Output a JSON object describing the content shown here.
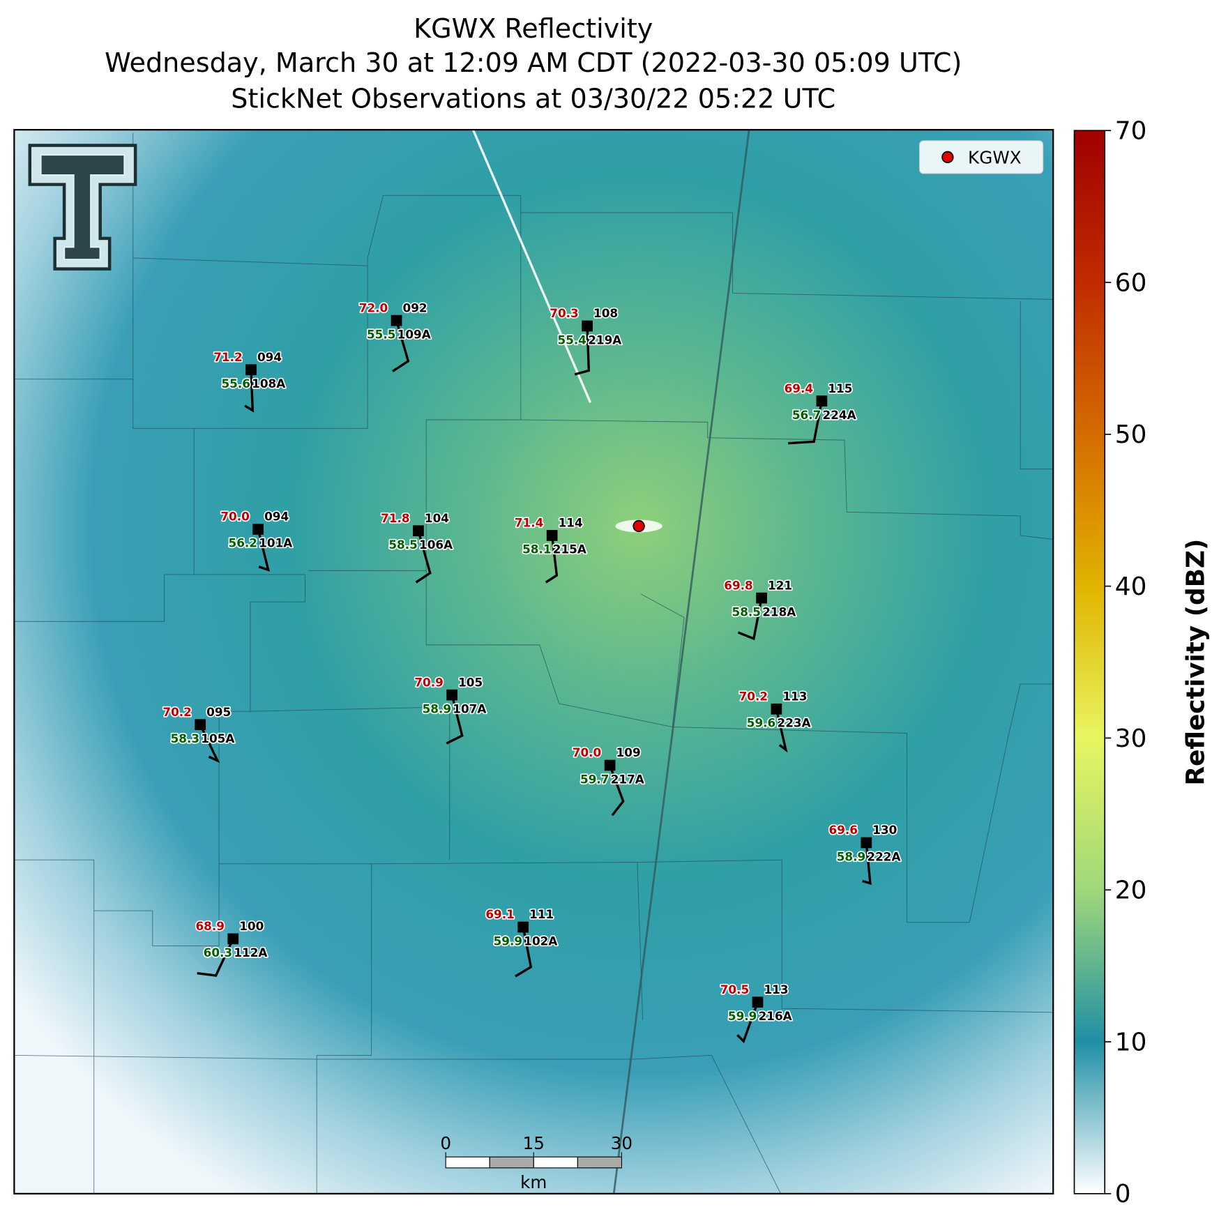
{
  "header": {
    "title": "KGWX Reflectivity",
    "subtitle": "Wednesday, March 30 at 12:09 AM CDT (2022-03-30 05:09 UTC)",
    "observations": "StickNet Observations at 03/30/22 05:22 UTC"
  },
  "legend": {
    "label": "KGWX"
  },
  "colorbar": {
    "label": "Reflectivity (dBZ)",
    "lim": [
      0,
      70
    ],
    "ticks": [
      0,
      10,
      20,
      30,
      40,
      50,
      60,
      70
    ]
  },
  "scale_bar": {
    "ticks": [
      0,
      15,
      30
    ],
    "unit": "km"
  },
  "stations": [
    {
      "temperature": "72.0",
      "number": "092",
      "dewpoint": "55.5",
      "id": "109A"
    },
    {
      "temperature": "70.3",
      "number": "108",
      "dewpoint": "55.4",
      "id": "219A"
    },
    {
      "temperature": "71.2",
      "number": "094",
      "dewpoint": "55.6",
      "id": "108A"
    },
    {
      "temperature": "69.4",
      "number": "115",
      "dewpoint": "56.7",
      "id": "224A"
    },
    {
      "temperature": "70.0",
      "number": "094",
      "dewpoint": "56.2",
      "id": "101A"
    },
    {
      "temperature": "71.8",
      "number": "104",
      "dewpoint": "58.5",
      "id": "106A"
    },
    {
      "temperature": "71.4",
      "number": "114",
      "dewpoint": "58.1",
      "id": "215A"
    },
    {
      "temperature": "69.8",
      "number": "121",
      "dewpoint": "58.5",
      "id": "218A"
    },
    {
      "temperature": "70.9",
      "number": "105",
      "dewpoint": "58.9",
      "id": "107A"
    },
    {
      "temperature": "70.2",
      "number": "113",
      "dewpoint": "59.6",
      "id": "223A"
    },
    {
      "temperature": "70.2",
      "number": "095",
      "dewpoint": "58.3",
      "id": "105A"
    },
    {
      "temperature": "70.0",
      "number": "109",
      "dewpoint": "59.7",
      "id": "217A"
    },
    {
      "temperature": "69.6",
      "number": "130",
      "dewpoint": "58.9",
      "id": "222A"
    },
    {
      "temperature": "68.9",
      "number": "100",
      "dewpoint": "60.3",
      "id": "112A"
    },
    {
      "temperature": "69.1",
      "number": "111",
      "dewpoint": "59.9",
      "id": "102A"
    },
    {
      "temperature": "70.5",
      "number": "113",
      "dewpoint": "59.9",
      "id": "216A"
    }
  ]
}
